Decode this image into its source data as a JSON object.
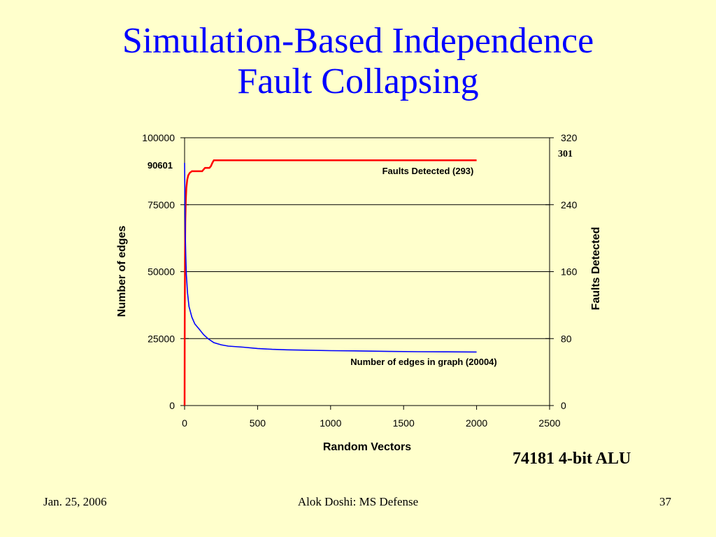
{
  "slide": {
    "title_line1": "Simulation-Based Independence",
    "title_line2": "Fault Collapsing",
    "caption": "74181 4-bit ALU",
    "footer_left": "Jan. 25, 2006",
    "footer_center": "Alok Doshi: MS Defense",
    "footer_right": "37"
  },
  "colors": {
    "background": "#ffffcc",
    "title": "#0000ff",
    "faults_series": "#ff0000",
    "edges_series": "#0000ff"
  },
  "chart_data": {
    "type": "line",
    "xlabel": "Random Vectors",
    "ylabel_left": "Number of edges",
    "ylabel_right": "Faults Detected",
    "xlim": [
      0,
      2500
    ],
    "ylim_left": [
      0,
      100000
    ],
    "ylim_right": [
      0,
      320
    ],
    "x_ticks": [
      "0",
      "500",
      "1000",
      "1500",
      "2000",
      "2500"
    ],
    "y_left_ticks": [
      "0",
      "25000",
      "50000",
      "75000",
      "100000"
    ],
    "y_right_ticks": [
      "0",
      "80",
      "160",
      "240",
      "320"
    ],
    "grid": true,
    "annotations": {
      "left_axis_value": "90601",
      "right_axis_value": "301",
      "faults_label": "Faults Detected (293)",
      "edges_label": "Number of edges in graph (20004)"
    },
    "series": [
      {
        "name": "Faults Detected (293)",
        "axis": "right",
        "color": "#ff0000",
        "x": [
          0,
          1,
          3,
          5,
          8,
          12,
          18,
          25,
          35,
          50,
          70,
          100,
          120,
          130,
          140,
          150,
          160,
          170,
          180,
          190,
          200,
          300,
          500,
          1000,
          1500,
          2000
        ],
        "y": [
          0,
          100,
          180,
          220,
          245,
          260,
          270,
          275,
          278,
          280,
          280,
          280,
          280,
          282,
          284,
          284,
          284,
          284,
          286,
          290,
          293,
          293,
          293,
          293,
          293,
          293
        ]
      },
      {
        "name": "Number of edges in graph (20004)",
        "axis": "left",
        "color": "#0000ff",
        "x": [
          0,
          2,
          5,
          8,
          12,
          20,
          30,
          50,
          70,
          100,
          130,
          160,
          200,
          250,
          300,
          400,
          500,
          600,
          700,
          800,
          1000,
          1200,
          1400,
          1600,
          1800,
          2000
        ],
        "y": [
          90601,
          78000,
          64000,
          56000,
          49000,
          42000,
          37000,
          33000,
          30500,
          28500,
          26500,
          25000,
          23500,
          22700,
          22200,
          21800,
          21300,
          21000,
          20800,
          20700,
          20500,
          20400,
          20200,
          20100,
          20050,
          20004
        ]
      }
    ]
  }
}
